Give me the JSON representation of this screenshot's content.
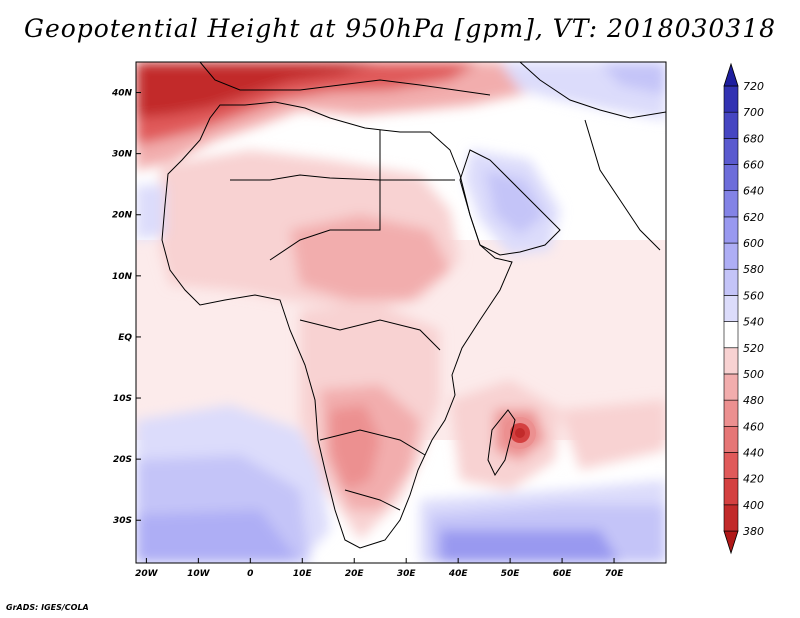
{
  "title": "Geopotential Height at 950hPa [gpm], VT: 2018030318",
  "credit": "GrADS: IGES/COLA",
  "map": {
    "lat_labels": [
      {
        "lat": 40,
        "label": "40N"
      },
      {
        "lat": 30,
        "label": "30N"
      },
      {
        "lat": 20,
        "label": "20N"
      },
      {
        "lat": 10,
        "label": "10N"
      },
      {
        "lat": 0,
        "label": "EQ"
      },
      {
        "lat": -10,
        "label": "10S"
      },
      {
        "lat": -20,
        "label": "20S"
      },
      {
        "lat": -30,
        "label": "30S"
      }
    ],
    "lon_labels": [
      {
        "lon": -20,
        "label": "20W"
      },
      {
        "lon": -10,
        "label": "10W"
      },
      {
        "lon": 0,
        "label": "0"
      },
      {
        "lon": 10,
        "label": "10E"
      },
      {
        "lon": 20,
        "label": "20E"
      },
      {
        "lon": 30,
        "label": "30E"
      },
      {
        "lon": 40,
        "label": "40E"
      },
      {
        "lon": 50,
        "label": "50E"
      },
      {
        "lon": 60,
        "label": "60E"
      },
      {
        "lon": 70,
        "label": "70E"
      }
    ]
  },
  "colorbar": {
    "levels": [
      380,
      400,
      420,
      440,
      460,
      480,
      500,
      520,
      540,
      560,
      580,
      600,
      620,
      640,
      660,
      680,
      700,
      720
    ],
    "colors": [
      "#b01818",
      "#c22a2a",
      "#d44040",
      "#e05a5a",
      "#e67676",
      "#ec9090",
      "#f2adad",
      "#f8d2d2",
      "#ffffff",
      "#dcdcfb",
      "#c4c4f8",
      "#aeaef5",
      "#9999f0",
      "#8383e6",
      "#6d6dda",
      "#5a5acf",
      "#4646c2",
      "#3232b2",
      "#1e1e9e"
    ]
  }
}
